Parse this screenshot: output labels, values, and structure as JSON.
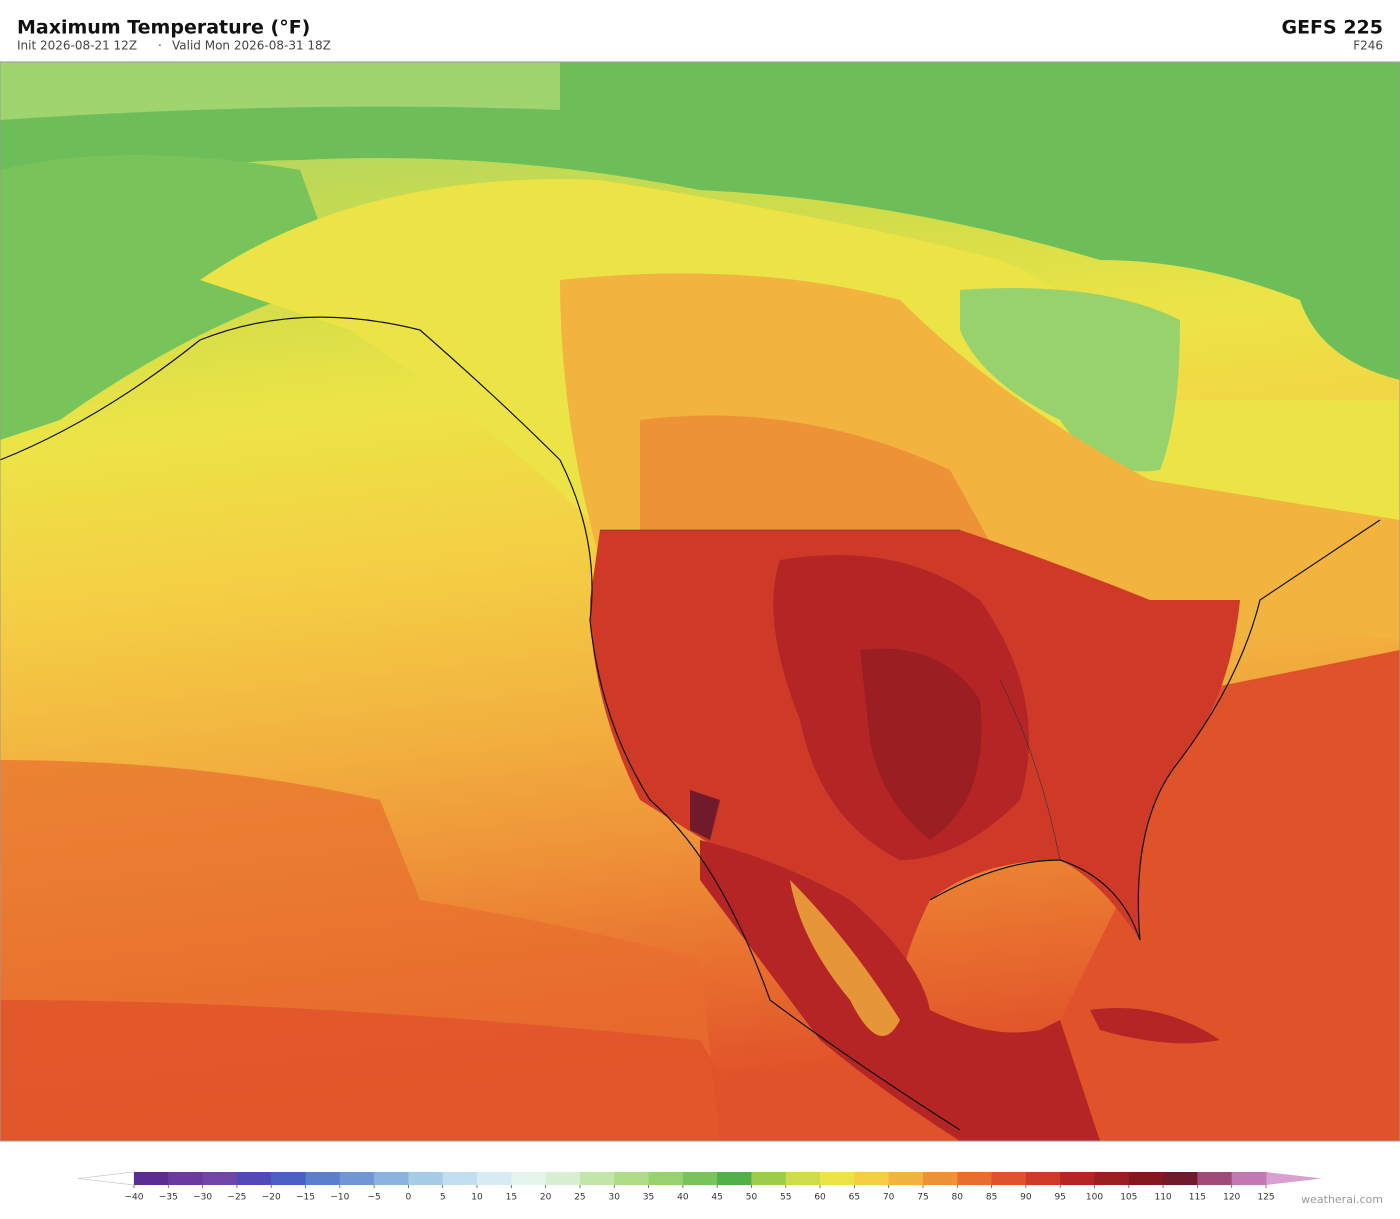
{
  "header": {
    "title": "Maximum Temperature  (°F)",
    "init": "Init 2026-08-21 12Z",
    "separator": "·",
    "valid": "Valid Mon 2026-08-31 18Z",
    "model": "GEFS  225",
    "forecast_hour": "F246"
  },
  "legend": {
    "ticks": [
      {
        "value": -40,
        "label": "−40"
      },
      {
        "value": -35,
        "label": "−35"
      },
      {
        "value": -30,
        "label": "−30"
      },
      {
        "value": -25,
        "label": "−25"
      },
      {
        "value": -20,
        "label": "−20"
      },
      {
        "value": -15,
        "label": "−15"
      },
      {
        "value": -10,
        "label": "−10"
      },
      {
        "value": -5,
        "label": "−5"
      },
      0,
      5,
      10,
      15,
      20,
      25,
      30,
      35,
      40,
      45,
      50,
      55,
      60,
      65,
      70,
      75,
      80,
      85,
      90,
      95,
      100,
      105,
      110,
      115,
      120,
      125
    ],
    "colors": [
      "#5b2c91",
      "#6a3a9e",
      "#6f46a8",
      "#5248b8",
      "#4a5ec4",
      "#5c7fcc",
      "#6f97d4",
      "#8ab4df",
      "#a6cce8",
      "#c1dfee",
      "#d6ebf2",
      "#e6f4ee",
      "#d9efd2",
      "#c3e5a8",
      "#b0dc8a",
      "#98d26d",
      "#78c35a",
      "#52b04a",
      "#9ccd4a",
      "#cfdc4a",
      "#ece446",
      "#f4cf44",
      "#f2b33f",
      "#ee9238",
      "#e86e2e",
      "#e0522a",
      "#cf3a28",
      "#b52525",
      "#9a1e22",
      "#85181f",
      "#701a2b",
      "#a04a7a",
      "#c278b0"
    ],
    "under_color": "#ffffff",
    "over_color": "#d8a0d0"
  },
  "credit": "weatherai.com"
}
